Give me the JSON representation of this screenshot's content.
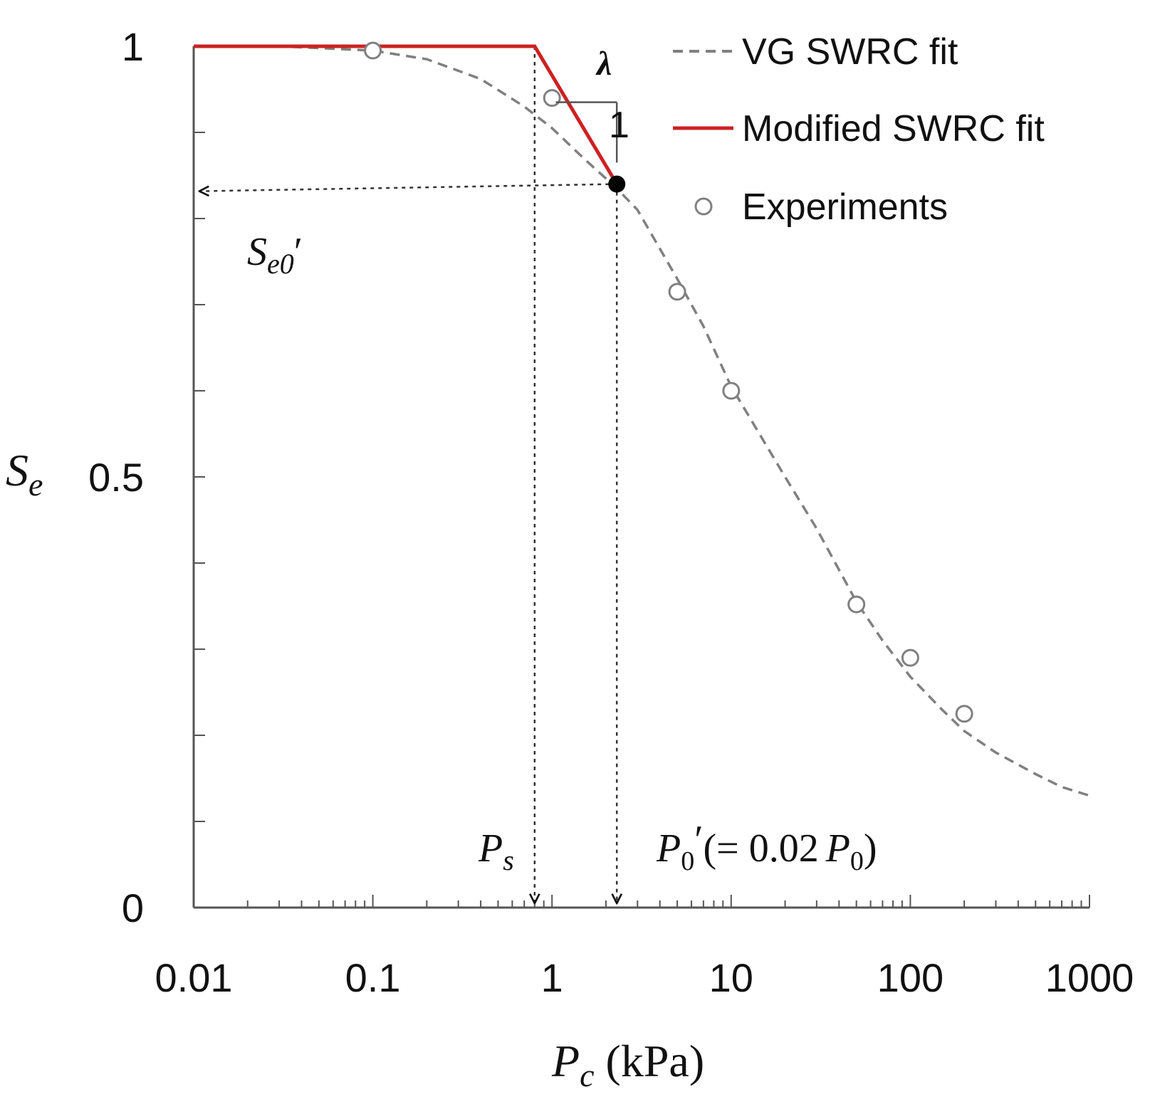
{
  "chart_data": {
    "type": "scatter",
    "x_scale": "log",
    "xlim": [
      0.01,
      1000
    ],
    "ylim": [
      0,
      1
    ],
    "xticks": [
      0.01,
      0.1,
      1,
      10,
      100,
      1000
    ],
    "xtick_labels": [
      "0.01",
      "0.1",
      "1",
      "10",
      "100",
      "1000"
    ],
    "yticks": [
      0,
      0.5,
      1
    ],
    "ytick_labels": [
      "0",
      "0.5",
      "1"
    ],
    "y_minor_step": 0.1,
    "xlabel": {
      "main": "P",
      "sub": "c",
      "unit": " (kPa)"
    },
    "ylabel": {
      "main": "S",
      "sub": "e"
    },
    "series": [
      {
        "name": "VG SWRC fit",
        "style": "dashed",
        "color": "#808080",
        "x": [
          0.01,
          0.03,
          0.1,
          0.2,
          0.4,
          0.7,
          1,
          1.5,
          2.3,
          3,
          5,
          7,
          10,
          20,
          30,
          50,
          70,
          100,
          150,
          200,
          300,
          500,
          700,
          1000
        ],
        "y": [
          1.0,
          1.0,
          0.995,
          0.985,
          0.962,
          0.93,
          0.905,
          0.87,
          0.835,
          0.81,
          0.73,
          0.675,
          0.605,
          0.5,
          0.44,
          0.355,
          0.31,
          0.268,
          0.23,
          0.205,
          0.18,
          0.155,
          0.14,
          0.13
        ]
      },
      {
        "name": "Modified SWRC fit",
        "style": "solid",
        "color": "#cc2222",
        "x": [
          0.01,
          0.8,
          2.3
        ],
        "y": [
          1.0,
          1.0,
          0.84
        ]
      },
      {
        "name": "Experiments",
        "style": "marker",
        "color": "#808080",
        "x": [
          0.1,
          1,
          5,
          10,
          50,
          100,
          200
        ],
        "y": [
          0.995,
          0.94,
          0.715,
          0.6,
          0.352,
          0.29,
          0.225
        ]
      }
    ],
    "legend": {
      "position": "top-right",
      "entries": [
        "VG SWRC fit",
        "Modified SWRC fit",
        "Experiments"
      ]
    },
    "annotations": {
      "slope_symbol": "λ",
      "slope_run_label": "1",
      "Ps": {
        "x": 0.8,
        "main": "P",
        "sub": "s"
      },
      "P0p": {
        "x": 2.3,
        "y": 0.84,
        "main": "P",
        "sub": "0",
        "prime": "′",
        "paren_open": "(= 0.02",
        "sub2": "0",
        "paren_close": ")"
      },
      "Se0p": {
        "y": 0.84,
        "main": "S",
        "sub": "e0",
        "prime": "′"
      }
    }
  }
}
